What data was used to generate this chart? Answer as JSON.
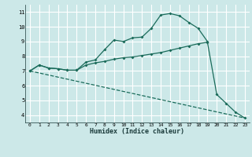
{
  "xlabel": "Humidex (Indice chaleur)",
  "bg_color": "#cce8e8",
  "grid_color": "#ffffff",
  "line_color": "#1a6b5a",
  "xlim": [
    -0.5,
    23.5
  ],
  "ylim": [
    3.5,
    11.5
  ],
  "xticks": [
    0,
    1,
    2,
    3,
    4,
    5,
    6,
    7,
    8,
    9,
    10,
    11,
    12,
    13,
    14,
    15,
    16,
    17,
    18,
    19,
    20,
    21,
    22,
    23
  ],
  "yticks": [
    4,
    5,
    6,
    7,
    8,
    9,
    10,
    11
  ],
  "curve1_x": [
    0,
    1,
    2,
    3,
    4,
    5,
    6,
    7,
    8,
    9,
    10,
    11,
    12,
    13,
    14,
    15,
    16,
    17,
    18,
    19
  ],
  "curve1_y": [
    7.0,
    7.4,
    7.2,
    7.15,
    7.05,
    7.05,
    7.6,
    7.75,
    8.45,
    9.1,
    9.0,
    9.25,
    9.3,
    9.9,
    10.8,
    10.9,
    10.75,
    10.3,
    9.9,
    9.0
  ],
  "curve2_x": [
    0,
    1,
    2,
    3,
    4,
    5,
    6,
    7,
    8,
    9,
    10,
    11,
    12,
    13,
    14,
    15,
    16,
    17,
    18,
    19,
    20,
    21,
    22,
    23
  ],
  "curve2_y": [
    7.0,
    7.4,
    7.2,
    7.15,
    7.05,
    7.05,
    7.4,
    7.55,
    7.65,
    7.8,
    7.9,
    7.95,
    8.05,
    8.15,
    8.25,
    8.4,
    8.55,
    8.7,
    8.85,
    8.95,
    5.4,
    4.8,
    4.2,
    3.8
  ],
  "curve3_x": [
    0,
    23
  ],
  "curve3_y": [
    7.0,
    3.8
  ]
}
